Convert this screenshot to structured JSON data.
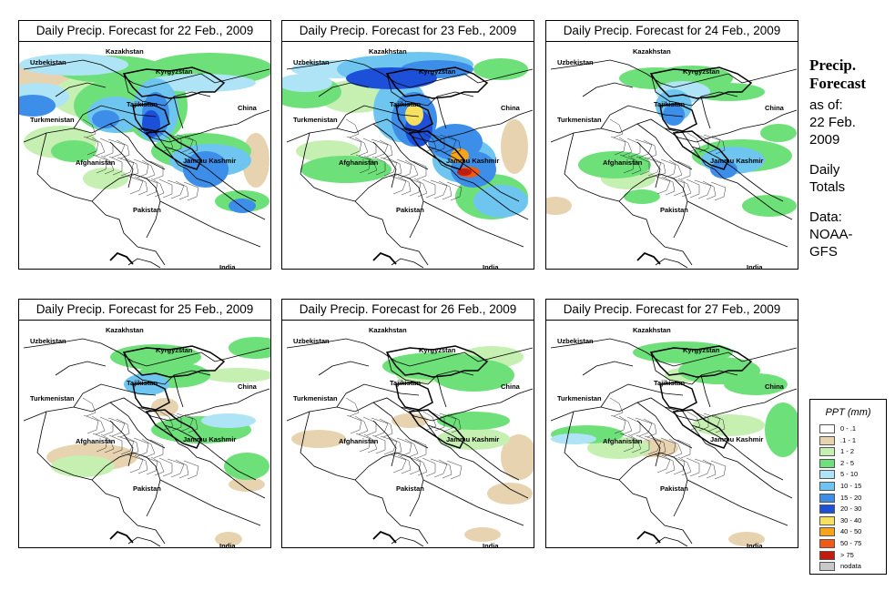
{
  "panels": [
    {
      "title": "Daily Precip. Forecast for  22 Feb., 2009"
    },
    {
      "title": "Daily Precip. Forecast for  23 Feb., 2009"
    },
    {
      "title": "Daily Precip. Forecast for  24 Feb., 2009"
    },
    {
      "title": "Daily Precip. Forecast for  25 Feb., 2009"
    },
    {
      "title": "Daily Precip. Forecast for  26 Feb., 2009"
    },
    {
      "title": "Daily Precip. Forecast for  27 Feb., 2009"
    }
  ],
  "map_labels": {
    "kazakhstan": "Kazakhstan",
    "uzbekistan": "Uzbekistan",
    "kyrgyzstan": "Kyrgyzstan",
    "tajikistan": "Tajikistan",
    "turkmenistan": "Turkmenistan",
    "china": "China",
    "afghanistan": "Afghanistan",
    "jammu_kashmir": "Jammu Kashmir",
    "pakistan": "Pakistan",
    "india": "India"
  },
  "sidebar": {
    "title_line1": "Precip.",
    "title_line2": "Forecast",
    "asof_line1": "as of:",
    "asof_line2": "22 Feb.",
    "asof_line3": "2009",
    "type_line1": "Daily",
    "type_line2": "Totals",
    "data_line1": "Data:",
    "data_line2": "NOAA-",
    "data_line3": "GFS"
  },
  "legend": {
    "title": "PPT (mm)",
    "items": [
      {
        "label": "0 - .1",
        "color": "#ffffff"
      },
      {
        "label": ".1 - 1",
        "color": "#e8d3b0"
      },
      {
        "label": "1 - 2",
        "color": "#c6efb2"
      },
      {
        "label": "2 - 5",
        "color": "#6ee07a"
      },
      {
        "label": "5 - 10",
        "color": "#aee4f6"
      },
      {
        "label": "10 - 15",
        "color": "#6ec6f0"
      },
      {
        "label": "15 - 20",
        "color": "#3c8ee8"
      },
      {
        "label": "20 - 30",
        "color": "#1c50d8"
      },
      {
        "label": "30 - 40",
        "color": "#f6e060"
      },
      {
        "label": "40 - 50",
        "color": "#f6a41c"
      },
      {
        "label": "50 - 75",
        "color": "#f05a14"
      },
      {
        "label": "> 75",
        "color": "#c01c10"
      },
      {
        "label": "nodata",
        "color": "#c8c8c8"
      }
    ]
  }
}
